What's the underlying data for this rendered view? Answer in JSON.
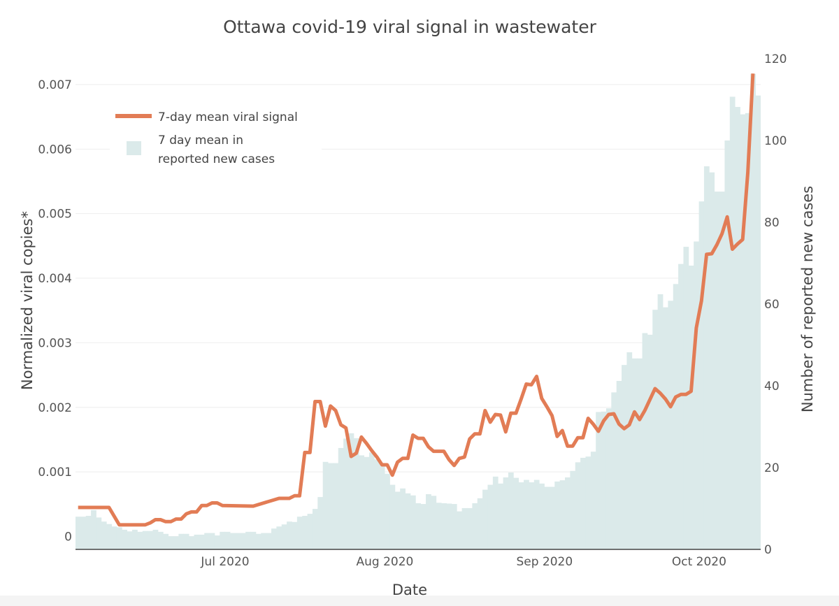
{
  "chart_data": {
    "type": "bar+line",
    "title": "Ottawa covid-19 viral signal in wastewater",
    "xlabel": "Date",
    "ylabel_left": "Normalized viral copies*",
    "ylabel_right": "Number of reported new cases",
    "x_ticks": [
      {
        "date": "2020-07-01",
        "label": "Jul 2020"
      },
      {
        "date": "2020-08-01",
        "label": "Aug 2020"
      },
      {
        "date": "2020-09-01",
        "label": "Sep 2020"
      },
      {
        "date": "2020-10-01",
        "label": "Oct 2020"
      }
    ],
    "y_left_ticks": [
      "0",
      "0.001",
      "0.002",
      "0.003",
      "0.004",
      "0.005",
      "0.006",
      "0.007"
    ],
    "y_left_tick_values": [
      0,
      0.001,
      0.002,
      0.003,
      0.004,
      0.005,
      0.006,
      0.007
    ],
    "y_right_ticks": [
      "0",
      "20",
      "40",
      "60",
      "80",
      "100",
      "120"
    ],
    "y_right_tick_values": [
      0,
      20,
      40,
      60,
      80,
      100,
      120
    ],
    "ylim_left": [
      -0.0002,
      0.0074
    ],
    "ylim_right": [
      0,
      120
    ],
    "grid": true,
    "legend_position": "top-left",
    "colors": {
      "line": "#e27c55",
      "bars": "#dbeaea",
      "axis": "#444444",
      "grid": "#eeeeee"
    },
    "series": [
      {
        "name": "7-day mean viral signal",
        "type": "line",
        "axis": "left",
        "points": [
          [
            "2020-06-03",
            0.00045
          ],
          [
            "2020-06-09",
            0.00045
          ],
          [
            "2020-06-11",
            0.00018
          ],
          [
            "2020-06-16",
            0.00018
          ],
          [
            "2020-06-17",
            0.00021
          ],
          [
            "2020-06-18",
            0.00026
          ],
          [
            "2020-06-19",
            0.00026
          ],
          [
            "2020-06-20",
            0.00023
          ],
          [
            "2020-06-21",
            0.00023
          ],
          [
            "2020-06-22",
            0.00027
          ],
          [
            "2020-06-23",
            0.00027
          ],
          [
            "2020-06-24",
            0.00035
          ],
          [
            "2020-06-25",
            0.00038
          ],
          [
            "2020-06-26",
            0.00038
          ],
          [
            "2020-06-27",
            0.00048
          ],
          [
            "2020-06-28",
            0.00048
          ],
          [
            "2020-06-29",
            0.00052
          ],
          [
            "2020-06-30",
            0.00052
          ],
          [
            "2020-07-01",
            0.00048
          ],
          [
            "2020-07-07",
            0.00047
          ],
          [
            "2020-07-12",
            0.00059
          ],
          [
            "2020-07-14",
            0.00059
          ],
          [
            "2020-07-15",
            0.00063
          ],
          [
            "2020-07-16",
            0.00063
          ],
          [
            "2020-07-17",
            0.0013
          ],
          [
            "2020-07-18",
            0.0013
          ],
          [
            "2020-07-19",
            0.00209
          ],
          [
            "2020-07-20",
            0.00209
          ],
          [
            "2020-07-21",
            0.00171
          ],
          [
            "2020-07-22",
            0.00202
          ],
          [
            "2020-07-23",
            0.00195
          ],
          [
            "2020-07-24",
            0.00173
          ],
          [
            "2020-07-25",
            0.00168
          ],
          [
            "2020-07-26",
            0.00124
          ],
          [
            "2020-07-27",
            0.00129
          ],
          [
            "2020-07-28",
            0.00154
          ],
          [
            "2020-07-29",
            0.00144
          ],
          [
            "2020-07-30",
            0.00133
          ],
          [
            "2020-07-31",
            0.00123
          ],
          [
            "2020-08-01",
            0.00111
          ],
          [
            "2020-08-02",
            0.00111
          ],
          [
            "2020-08-03",
            0.00095
          ],
          [
            "2020-08-04",
            0.00115
          ],
          [
            "2020-08-05",
            0.00121
          ],
          [
            "2020-08-06",
            0.00121
          ],
          [
            "2020-08-07",
            0.00157
          ],
          [
            "2020-08-08",
            0.00152
          ],
          [
            "2020-08-09",
            0.00152
          ],
          [
            "2020-08-10",
            0.00139
          ],
          [
            "2020-08-11",
            0.00132
          ],
          [
            "2020-08-13",
            0.00132
          ],
          [
            "2020-08-14",
            0.00119
          ],
          [
            "2020-08-15",
            0.0011
          ],
          [
            "2020-08-16",
            0.00121
          ],
          [
            "2020-08-17",
            0.00123
          ],
          [
            "2020-08-18",
            0.00151
          ],
          [
            "2020-08-19",
            0.00159
          ],
          [
            "2020-08-20",
            0.00159
          ],
          [
            "2020-08-21",
            0.00195
          ],
          [
            "2020-08-22",
            0.00177
          ],
          [
            "2020-08-23",
            0.00189
          ],
          [
            "2020-08-24",
            0.00188
          ],
          [
            "2020-08-25",
            0.00162
          ],
          [
            "2020-08-26",
            0.00191
          ],
          [
            "2020-08-27",
            0.00191
          ],
          [
            "2020-08-28",
            0.00213
          ],
          [
            "2020-08-29",
            0.00236
          ],
          [
            "2020-08-30",
            0.00235
          ],
          [
            "2020-08-31",
            0.00248
          ],
          [
            "2020-09-01",
            0.00214
          ],
          [
            "2020-09-02",
            0.00201
          ],
          [
            "2020-09-03",
            0.00187
          ],
          [
            "2020-09-04",
            0.00155
          ],
          [
            "2020-09-05",
            0.00164
          ],
          [
            "2020-09-06",
            0.0014
          ],
          [
            "2020-09-07",
            0.0014
          ],
          [
            "2020-09-08",
            0.00153
          ],
          [
            "2020-09-09",
            0.00153
          ],
          [
            "2020-09-10",
            0.00183
          ],
          [
            "2020-09-11",
            0.00174
          ],
          [
            "2020-09-12",
            0.00163
          ],
          [
            "2020-09-13",
            0.00179
          ],
          [
            "2020-09-14",
            0.00189
          ],
          [
            "2020-09-15",
            0.0019
          ],
          [
            "2020-09-16",
            0.00174
          ],
          [
            "2020-09-17",
            0.00167
          ],
          [
            "2020-09-18",
            0.00173
          ],
          [
            "2020-09-19",
            0.00193
          ],
          [
            "2020-09-20",
            0.00181
          ],
          [
            "2020-09-21",
            0.00195
          ],
          [
            "2020-09-23",
            0.00229
          ],
          [
            "2020-09-24",
            0.00222
          ],
          [
            "2020-09-25",
            0.00213
          ],
          [
            "2020-09-26",
            0.00201
          ],
          [
            "2020-09-27",
            0.00216
          ],
          [
            "2020-09-28",
            0.0022
          ],
          [
            "2020-09-29",
            0.0022
          ],
          [
            "2020-09-30",
            0.00225
          ],
          [
            "2020-10-01",
            0.00323
          ],
          [
            "2020-10-02",
            0.00365
          ],
          [
            "2020-10-03",
            0.00437
          ],
          [
            "2020-10-04",
            0.00438
          ],
          [
            "2020-10-05",
            0.00452
          ],
          [
            "2020-10-06",
            0.00469
          ],
          [
            "2020-10-07",
            0.00495
          ],
          [
            "2020-10-08",
            0.00445
          ],
          [
            "2020-10-09",
            0.00453
          ],
          [
            "2020-10-10",
            0.0046
          ],
          [
            "2020-10-11",
            0.00564
          ],
          [
            "2020-10-12",
            0.00717
          ]
        ]
      },
      {
        "name": "7 day mean in reported new cases",
        "legend_lines": [
          "7 day mean in",
          "reported new cases"
        ],
        "type": "bar",
        "axis": "right",
        "dates": [
          "2020-06-03",
          "2020-06-04",
          "2020-06-05",
          "2020-06-06",
          "2020-06-07",
          "2020-06-08",
          "2020-06-09",
          "2020-06-10",
          "2020-06-11",
          "2020-06-12",
          "2020-06-13",
          "2020-06-14",
          "2020-06-15",
          "2020-06-16",
          "2020-06-17",
          "2020-06-18",
          "2020-06-19",
          "2020-06-20",
          "2020-06-21",
          "2020-06-22",
          "2020-06-23",
          "2020-06-24",
          "2020-06-25",
          "2020-06-26",
          "2020-06-27",
          "2020-06-28",
          "2020-06-29",
          "2020-06-30",
          "2020-07-01",
          "2020-07-02",
          "2020-07-03",
          "2020-07-04",
          "2020-07-05",
          "2020-07-06",
          "2020-07-07",
          "2020-07-08",
          "2020-07-09",
          "2020-07-10",
          "2020-07-11",
          "2020-07-12",
          "2020-07-13",
          "2020-07-14",
          "2020-07-15",
          "2020-07-16",
          "2020-07-17",
          "2020-07-18",
          "2020-07-19",
          "2020-07-20",
          "2020-07-21",
          "2020-07-22",
          "2020-07-23",
          "2020-07-24",
          "2020-07-25",
          "2020-07-26",
          "2020-07-27",
          "2020-07-28",
          "2020-07-29",
          "2020-07-30",
          "2020-07-31",
          "2020-08-01",
          "2020-08-02",
          "2020-08-03",
          "2020-08-04",
          "2020-08-05",
          "2020-08-06",
          "2020-08-07",
          "2020-08-08",
          "2020-08-09",
          "2020-08-10",
          "2020-08-11",
          "2020-08-12",
          "2020-08-13",
          "2020-08-14",
          "2020-08-15",
          "2020-08-16",
          "2020-08-17",
          "2020-08-18",
          "2020-08-19",
          "2020-08-20",
          "2020-08-21",
          "2020-08-22",
          "2020-08-23",
          "2020-08-24",
          "2020-08-25",
          "2020-08-26",
          "2020-08-27",
          "2020-08-28",
          "2020-08-29",
          "2020-08-30",
          "2020-08-31",
          "2020-09-01",
          "2020-09-02",
          "2020-09-03",
          "2020-09-04",
          "2020-09-05",
          "2020-09-06",
          "2020-09-07",
          "2020-09-08",
          "2020-09-09",
          "2020-09-10",
          "2020-09-11",
          "2020-09-12",
          "2020-09-13",
          "2020-09-14",
          "2020-09-15",
          "2020-09-16",
          "2020-09-17",
          "2020-09-18",
          "2020-09-19",
          "2020-09-20",
          "2020-09-21",
          "2020-09-22",
          "2020-09-23",
          "2020-09-24",
          "2020-09-25",
          "2020-09-26",
          "2020-09-27",
          "2020-09-28",
          "2020-09-29",
          "2020-09-30",
          "2020-10-01",
          "2020-10-02",
          "2020-10-03",
          "2020-10-04",
          "2020-10-05",
          "2020-10-06",
          "2020-10-07",
          "2020-10-08",
          "2020-10-09",
          "2020-10-10",
          "2020-10-11",
          "2020-10-12",
          "2020-10-13"
        ],
        "values": [
          8.0,
          8.0,
          8.2,
          9.6,
          7.8,
          6.8,
          6.2,
          5.6,
          5.4,
          4.8,
          4.4,
          4.8,
          4.3,
          4.5,
          4.5,
          4.8,
          4.3,
          3.8,
          3.2,
          3.2,
          3.8,
          3.8,
          3.2,
          3.6,
          3.6,
          4.0,
          4.0,
          3.4,
          4.3,
          4.3,
          4.0,
          4.0,
          4.0,
          4.3,
          4.3,
          3.8,
          4.0,
          4.0,
          5.1,
          5.6,
          6.1,
          6.8,
          6.7,
          8.0,
          8.2,
          8.7,
          9.9,
          12.8,
          21.4,
          21.1,
          21.1,
          24.8,
          27.1,
          28.4,
          27.2,
          23.0,
          22.6,
          23.7,
          22.0,
          20.8,
          18.5,
          15.8,
          14.1,
          14.9,
          13.7,
          13.2,
          11.3,
          11.1,
          13.5,
          13.1,
          11.4,
          11.3,
          11.2,
          11.1,
          9.3,
          10.1,
          10.1,
          11.3,
          12.5,
          14.6,
          15.8,
          17.8,
          16.1,
          17.6,
          18.8,
          17.5,
          16.4,
          17.0,
          16.4,
          17.0,
          16.1,
          15.3,
          15.3,
          16.6,
          16.9,
          17.6,
          19.2,
          21.3,
          22.4,
          22.7,
          23.9,
          33.6,
          33.7,
          34.5,
          38.4,
          41.2,
          45.1,
          48.2,
          46.7,
          46.7,
          52.9,
          52.5,
          58.6,
          62.4,
          59.2,
          60.8,
          64.9,
          69.8,
          74.0,
          69.4,
          75.3,
          85.1,
          93.7,
          92.2,
          87.5,
          87.5,
          100.0,
          110.7,
          108.2,
          106.4,
          106.7,
          116.3,
          111.0
        ]
      }
    ]
  }
}
